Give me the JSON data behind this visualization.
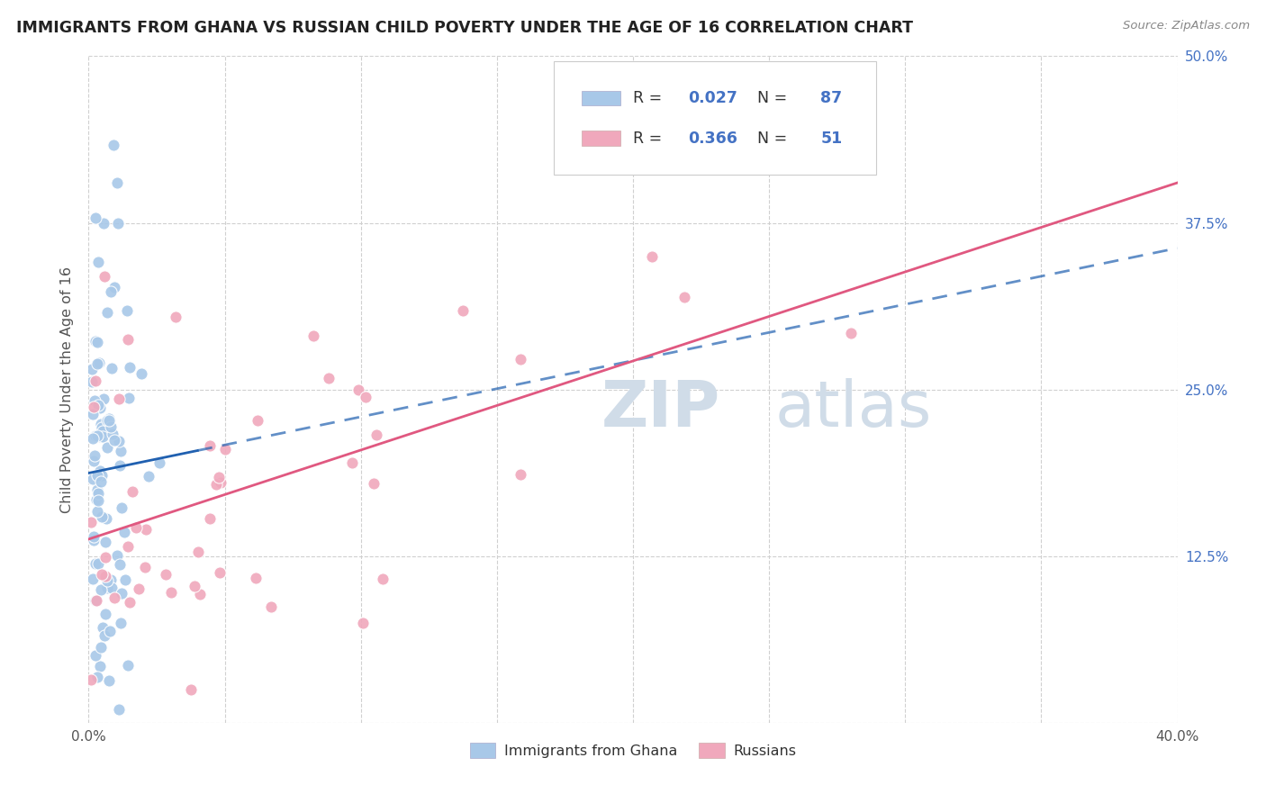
{
  "title": "IMMIGRANTS FROM GHANA VS RUSSIAN CHILD POVERTY UNDER THE AGE OF 16 CORRELATION CHART",
  "source": "Source: ZipAtlas.com",
  "ylabel": "Child Poverty Under the Age of 16",
  "xlim": [
    0.0,
    0.4
  ],
  "ylim": [
    0.0,
    0.5
  ],
  "ghana_R": 0.027,
  "ghana_N": 87,
  "russian_R": 0.366,
  "russian_N": 51,
  "ghana_color": "#a8c8e8",
  "russian_color": "#f0a8bc",
  "ghana_line_color": "#2060b0",
  "russian_line_color": "#e05880",
  "tick_color": "#4472c4",
  "legend_ghana_label": "Immigrants from Ghana",
  "legend_russian_label": "Russians",
  "watermark_color": "#d0dce8"
}
